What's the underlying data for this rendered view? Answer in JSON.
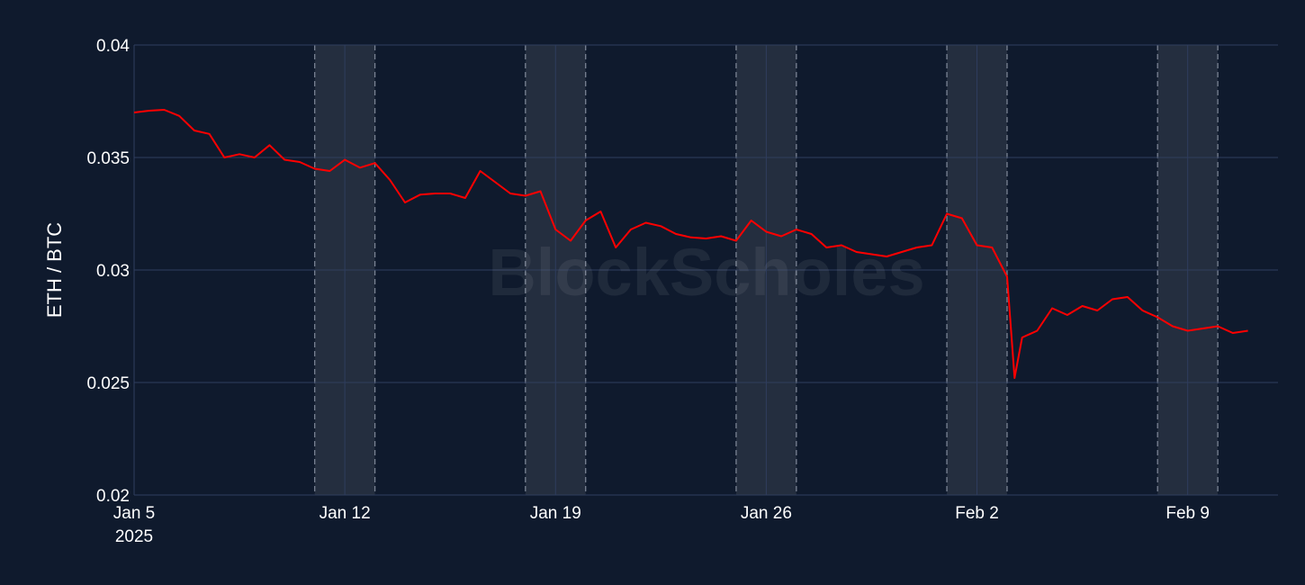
{
  "chart_data": {
    "type": "line",
    "title": "",
    "xlabel": "",
    "ylabel": "ETH / BTC",
    "watermark": "BlockScholes",
    "background": "#0f1a2d",
    "line_color": "#ff0000",
    "grid": true,
    "xlim": [
      "2025-01-05",
      "2025-02-12"
    ],
    "ylim": [
      0.02,
      0.04
    ],
    "y_ticks": [
      {
        "value": 0.02,
        "label": "0.02"
      },
      {
        "value": 0.025,
        "label": "0.025"
      },
      {
        "value": 0.03,
        "label": "0.03"
      },
      {
        "value": 0.035,
        "label": "0.035"
      },
      {
        "value": 0.04,
        "label": "0.04"
      }
    ],
    "x_ticks": [
      {
        "date": "2025-01-05",
        "label": "Jan 5",
        "sublabel": "2025"
      },
      {
        "date": "2025-01-12",
        "label": "Jan 12"
      },
      {
        "date": "2025-01-19",
        "label": "Jan 19"
      },
      {
        "date": "2025-01-26",
        "label": "Jan 26"
      },
      {
        "date": "2025-02-02",
        "label": "Feb 2"
      },
      {
        "date": "2025-02-09",
        "label": "Feb 9"
      }
    ],
    "weekend_bands": [
      [
        "2025-01-11",
        "2025-01-13"
      ],
      [
        "2025-01-18",
        "2025-01-20"
      ],
      [
        "2025-01-25",
        "2025-01-27"
      ],
      [
        "2025-02-01",
        "2025-02-03"
      ],
      [
        "2025-02-08",
        "2025-02-10"
      ]
    ],
    "series": [
      {
        "values": [
          [
            "2025-01-05",
            0.037
          ],
          [
            "2025-01-05T12:00",
            0.03708
          ],
          [
            "2025-01-06",
            0.03712
          ],
          [
            "2025-01-06T12:00",
            0.03685
          ],
          [
            "2025-01-07",
            0.0362
          ],
          [
            "2025-01-07T12:00",
            0.03605
          ],
          [
            "2025-01-08",
            0.035
          ],
          [
            "2025-01-08T12:00",
            0.03515
          ],
          [
            "2025-01-09",
            0.035
          ],
          [
            "2025-01-09T12:00",
            0.03555
          ],
          [
            "2025-01-10",
            0.0349
          ],
          [
            "2025-01-10T12:00",
            0.0348
          ],
          [
            "2025-01-11",
            0.0345
          ],
          [
            "2025-01-11T12:00",
            0.0344
          ],
          [
            "2025-01-12",
            0.0349
          ],
          [
            "2025-01-12T12:00",
            0.03455
          ],
          [
            "2025-01-13",
            0.03475
          ],
          [
            "2025-01-13T12:00",
            0.034
          ],
          [
            "2025-01-14",
            0.033
          ],
          [
            "2025-01-14T12:00",
            0.03335
          ],
          [
            "2025-01-15",
            0.0334
          ],
          [
            "2025-01-15T12:00",
            0.0334
          ],
          [
            "2025-01-16",
            0.0332
          ],
          [
            "2025-01-16T12:00",
            0.0344
          ],
          [
            "2025-01-17",
            0.0339
          ],
          [
            "2025-01-17T12:00",
            0.0334
          ],
          [
            "2025-01-18",
            0.0333
          ],
          [
            "2025-01-18T12:00",
            0.0335
          ],
          [
            "2025-01-19",
            0.0318
          ],
          [
            "2025-01-19T12:00",
            0.0313
          ],
          [
            "2025-01-20",
            0.0322
          ],
          [
            "2025-01-20T12:00",
            0.0326
          ],
          [
            "2025-01-21",
            0.031
          ],
          [
            "2025-01-21T12:00",
            0.0318
          ],
          [
            "2025-01-22",
            0.0321
          ],
          [
            "2025-01-22T12:00",
            0.03195
          ],
          [
            "2025-01-23",
            0.0316
          ],
          [
            "2025-01-23T12:00",
            0.03145
          ],
          [
            "2025-01-24",
            0.0314
          ],
          [
            "2025-01-24T12:00",
            0.0315
          ],
          [
            "2025-01-25",
            0.0313
          ],
          [
            "2025-01-25T12:00",
            0.0322
          ],
          [
            "2025-01-26",
            0.0317
          ],
          [
            "2025-01-26T12:00",
            0.0315
          ],
          [
            "2025-01-27",
            0.0318
          ],
          [
            "2025-01-27T12:00",
            0.0316
          ],
          [
            "2025-01-28",
            0.031
          ],
          [
            "2025-01-28T12:00",
            0.0311
          ],
          [
            "2025-01-29",
            0.0308
          ],
          [
            "2025-01-29T12:00",
            0.0307
          ],
          [
            "2025-01-30",
            0.0306
          ],
          [
            "2025-01-30T12:00",
            0.0308
          ],
          [
            "2025-01-31",
            0.031
          ],
          [
            "2025-01-31T12:00",
            0.0311
          ],
          [
            "2025-02-01",
            0.0325
          ],
          [
            "2025-02-01T12:00",
            0.0323
          ],
          [
            "2025-02-02",
            0.0311
          ],
          [
            "2025-02-02T12:00",
            0.031
          ],
          [
            "2025-02-03",
            0.0297
          ],
          [
            "2025-02-03T06:00",
            0.0252
          ],
          [
            "2025-02-03T12:00",
            0.027
          ],
          [
            "2025-02-04",
            0.0273
          ],
          [
            "2025-02-04T12:00",
            0.0283
          ],
          [
            "2025-02-05",
            0.028
          ],
          [
            "2025-02-05T12:00",
            0.0284
          ],
          [
            "2025-02-06",
            0.0282
          ],
          [
            "2025-02-06T12:00",
            0.0287
          ],
          [
            "2025-02-07",
            0.0288
          ],
          [
            "2025-02-07T12:00",
            0.0282
          ],
          [
            "2025-02-08",
            0.0279
          ],
          [
            "2025-02-08T12:00",
            0.0275
          ],
          [
            "2025-02-09",
            0.0273
          ],
          [
            "2025-02-09T12:00",
            0.0274
          ],
          [
            "2025-02-10",
            0.0275
          ],
          [
            "2025-02-10T12:00",
            0.0272
          ],
          [
            "2025-02-11",
            0.0273
          ]
        ]
      }
    ]
  }
}
